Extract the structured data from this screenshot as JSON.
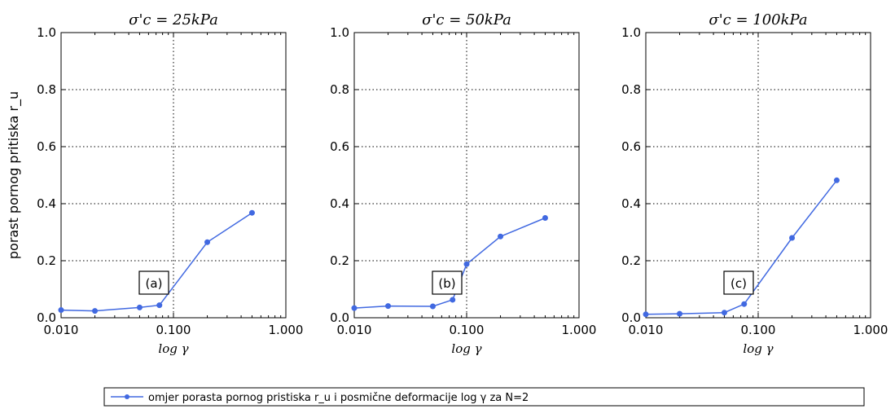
{
  "colors": {
    "series": "#4169e1",
    "grid": "#000000",
    "axes": "#000000"
  },
  "legend": {
    "label": "omjer porasta pornog pristiska r_u i posmične deformacije log γ za N=2",
    "placement": "bottom-center"
  },
  "chart_data": [
    {
      "type": "line",
      "title": "σ'c = 25kPa",
      "xlabel": "log γ",
      "ylabel": "porast pornog pritiska r_u",
      "xscale": "log",
      "xlim": [
        0.01,
        1.0
      ],
      "ylim": [
        0.0,
        1.0
      ],
      "xticks": [
        "0.010",
        "0.100",
        "1.000"
      ],
      "yticks": [
        "0.0",
        "0.2",
        "0.4",
        "0.6",
        "0.8",
        "1.0"
      ],
      "grid": true,
      "vline_x": 0.1,
      "annotation": "(a)",
      "series": [
        {
          "x": [
            0.01,
            0.02,
            0.05,
            0.075,
            0.2,
            0.5
          ],
          "y": [
            0.027,
            0.024,
            0.036,
            0.044,
            0.265,
            0.368
          ]
        }
      ]
    },
    {
      "type": "line",
      "title": "σ'c = 50kPa",
      "xlabel": "log γ",
      "ylabel": "",
      "xscale": "log",
      "xlim": [
        0.01,
        1.0
      ],
      "ylim": [
        0.0,
        1.0
      ],
      "xticks": [
        "0.010",
        "0.100",
        "1.000"
      ],
      "yticks": [
        "0.0",
        "0.2",
        "0.4",
        "0.6",
        "0.8",
        "1.0"
      ],
      "grid": true,
      "vline_x": 0.1,
      "annotation": "(b)",
      "series": [
        {
          "x": [
            0.01,
            0.02,
            0.05,
            0.075,
            0.1,
            0.2,
            0.5
          ],
          "y": [
            0.034,
            0.041,
            0.04,
            0.063,
            0.188,
            0.285,
            0.35
          ]
        }
      ]
    },
    {
      "type": "line",
      "title": "σ'c = 100kPa",
      "xlabel": "log γ",
      "ylabel": "",
      "xscale": "log",
      "xlim": [
        0.01,
        1.0
      ],
      "ylim": [
        0.0,
        1.0
      ],
      "xticks": [
        "0.010",
        "0.100",
        "1.000"
      ],
      "yticks": [
        "0.0",
        "0.2",
        "0.4",
        "0.6",
        "0.8",
        "1.0"
      ],
      "grid": true,
      "vline_x": 0.1,
      "annotation": "(c)",
      "series": [
        {
          "x": [
            0.01,
            0.02,
            0.05,
            0.075,
            0.2,
            0.5
          ],
          "y": [
            0.012,
            0.014,
            0.018,
            0.048,
            0.28,
            0.482
          ]
        }
      ]
    }
  ]
}
